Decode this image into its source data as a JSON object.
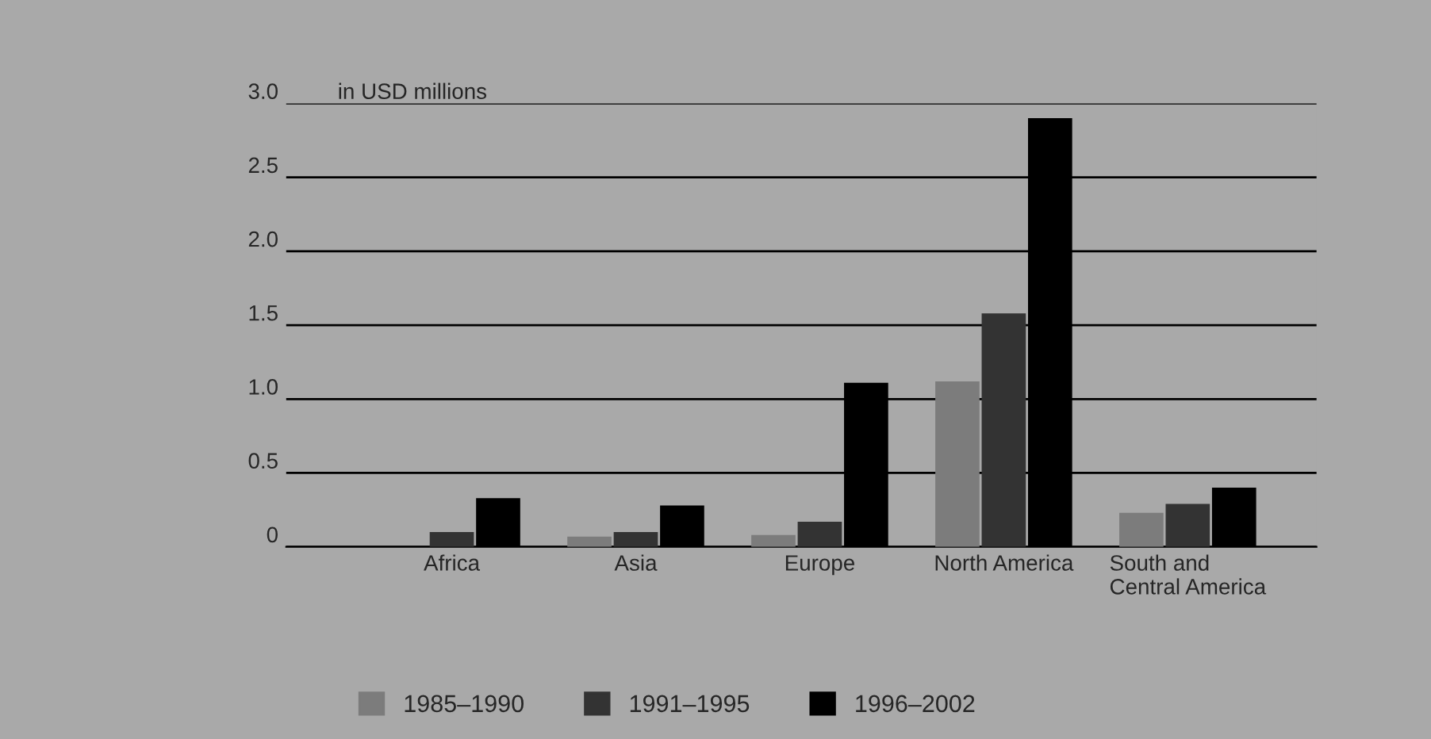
{
  "chart_data": {
    "type": "bar",
    "ylabel": "in USD millions",
    "categories": [
      "Africa",
      "Asia",
      "Europe",
      "North America",
      "South and\nCentral America"
    ],
    "series": [
      {
        "name": "1985–1990",
        "color": "#7c7c7c",
        "values": [
          null,
          0.07,
          0.08,
          1.12,
          0.23
        ]
      },
      {
        "name": "1991–1995",
        "color": "#333333",
        "values": [
          0.1,
          0.1,
          0.17,
          1.58,
          0.29
        ]
      },
      {
        "name": "1996–2002",
        "color": "#000000",
        "values": [
          0.33,
          0.28,
          1.11,
          2.9,
          0.4
        ]
      }
    ],
    "ylim": [
      0,
      3.0
    ],
    "yticks": [
      {
        "value": 0,
        "label": "0"
      },
      {
        "value": 0.5,
        "label": "0.5"
      },
      {
        "value": 1.0,
        "label": "1.0"
      },
      {
        "value": 1.5,
        "label": "1.5"
      },
      {
        "value": 2.0,
        "label": "2.0"
      },
      {
        "value": 2.5,
        "label": "2.5"
      },
      {
        "value": 3.0,
        "label": "3.0"
      }
    ],
    "grid": "y",
    "legend": "bottom"
  }
}
